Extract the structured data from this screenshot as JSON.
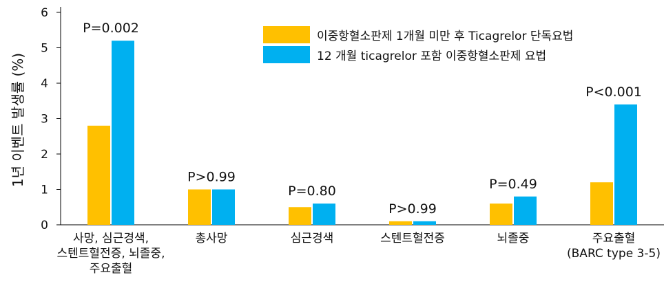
{
  "chart_data": {
    "type": "bar",
    "ylabel": "1년 이벤트 발생률 (%)",
    "ylim": [
      0,
      6
    ],
    "yticks": [
      "0",
      "1",
      "2",
      "3",
      "4",
      "5",
      "6"
    ],
    "grid": false,
    "legend_position": "top-right",
    "categories": [
      [
        "사망, 심근경색,",
        "스텐트혈전증, 뇌졸중,",
        "주요출혈"
      ],
      [
        "총사망"
      ],
      [
        "심근경색"
      ],
      [
        "스텐트혈전증"
      ],
      [
        "뇌졸중"
      ],
      [
        "주요출혈",
        "(BARC type 3-5)"
      ]
    ],
    "series": [
      {
        "name": "이중항혈소판제 1개월 미만 후 Ticagrelor 단독요법",
        "color": "#FFC000",
        "values": [
          2.8,
          1.0,
          0.5,
          0.1,
          0.6,
          1.2
        ]
      },
      {
        "name": "12 개월 ticagrelor 포함 이중항혈소판제 요법",
        "color": "#00B0F0",
        "values": [
          5.2,
          1.0,
          0.6,
          0.1,
          0.8,
          3.4
        ]
      }
    ],
    "annotations": [
      "P=0.002",
      "P>0.99",
      "P=0.80",
      "P>0.99",
      "P=0.49",
      "P<0.001"
    ]
  }
}
